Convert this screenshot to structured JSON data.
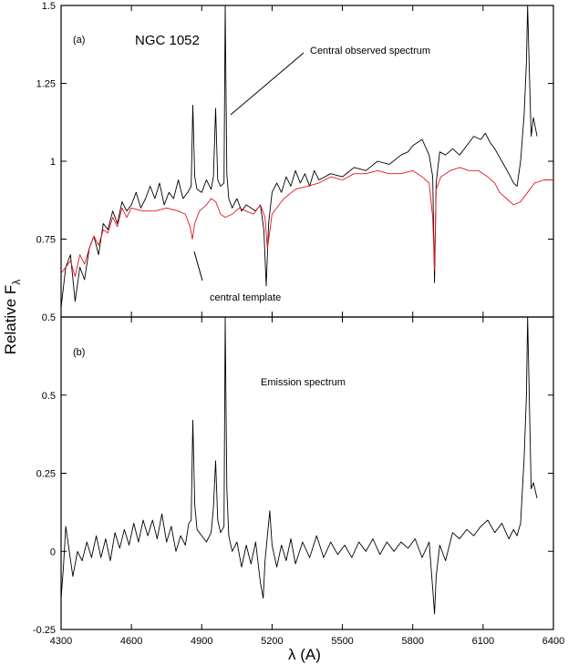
{
  "chart_data": [
    {
      "type": "line",
      "panel_tag": "(a)",
      "title": "NGC 1052",
      "xlabel": "λ (A)",
      "ylabel": "Relative F",
      "ylabel_subscript": "λ",
      "xlim": [
        4300,
        6400
      ],
      "ylim": [
        0.5,
        1.5
      ],
      "xticks": [
        "4300",
        "4600",
        "4900",
        "5200",
        "5500",
        "5800",
        "6100",
        "6400"
      ],
      "yticks": [
        "0.5",
        "0.75",
        "1",
        "1.25",
        "1.5"
      ],
      "annotations": [
        "Central observed spectrum",
        "central template"
      ],
      "series": [
        {
          "color": "#000000",
          "x": [
            4300,
            4320,
            4340,
            4360,
            4380,
            4400,
            4420,
            4440,
            4460,
            4480,
            4500,
            4520,
            4540,
            4560,
            4580,
            4600,
            4620,
            4640,
            4660,
            4680,
            4700,
            4720,
            4740,
            4760,
            4780,
            4800,
            4820,
            4840,
            4855,
            4862,
            4870,
            4880,
            4900,
            4920,
            4940,
            4950,
            4959,
            4968,
            4980,
            4995,
            5000,
            5007,
            5015,
            5030,
            5050,
            5070,
            5090,
            5110,
            5130,
            5150,
            5165,
            5175,
            5185,
            5200,
            5220,
            5240,
            5260,
            5280,
            5300,
            5320,
            5340,
            5360,
            5380,
            5400,
            5450,
            5500,
            5550,
            5600,
            5650,
            5700,
            5750,
            5780,
            5800,
            5840,
            5870,
            5885,
            5893,
            5900,
            5915,
            5940,
            5970,
            6000,
            6030,
            6060,
            6090,
            6110,
            6130,
            6150,
            6180,
            6210,
            6230,
            6245,
            6260,
            6275,
            6285,
            6290,
            6297,
            6305,
            6315,
            6330
          ],
          "y": [
            0.53,
            0.66,
            0.7,
            0.55,
            0.66,
            0.62,
            0.72,
            0.76,
            0.7,
            0.8,
            0.78,
            0.84,
            0.8,
            0.87,
            0.84,
            0.86,
            0.9,
            0.85,
            0.88,
            0.92,
            0.88,
            0.93,
            0.86,
            0.9,
            0.88,
            0.94,
            0.88,
            0.9,
            0.92,
            1.18,
            0.95,
            0.91,
            0.9,
            0.94,
            0.91,
            0.95,
            1.17,
            0.94,
            0.92,
            0.93,
            1.5,
            0.96,
            0.88,
            0.85,
            0.88,
            0.84,
            0.86,
            0.85,
            0.84,
            0.86,
            0.78,
            0.6,
            0.8,
            0.9,
            0.93,
            0.9,
            0.95,
            0.92,
            0.97,
            0.93,
            0.96,
            0.92,
            0.97,
            0.94,
            0.96,
            0.95,
            0.98,
            0.97,
            1,
            0.99,
            1.02,
            1.03,
            1.05,
            1.07,
            1.02,
            0.95,
            0.61,
            0.93,
            1.03,
            1.02,
            1.04,
            1.02,
            1.05,
            1.08,
            1.07,
            1.09,
            1.06,
            1.04,
            1.0,
            0.96,
            0.93,
            0.92,
            1.0,
            1.15,
            1.32,
            1.5,
            1.3,
            1.08,
            1.14,
            1.08
          ]
        },
        {
          "color": "#e0141e",
          "x": [
            4300,
            4320,
            4340,
            4360,
            4380,
            4400,
            4420,
            4440,
            4460,
            4480,
            4500,
            4520,
            4540,
            4560,
            4580,
            4600,
            4650,
            4700,
            4750,
            4800,
            4830,
            4850,
            4860,
            4870,
            4890,
            4920,
            4940,
            4960,
            4980,
            5000,
            5030,
            5060,
            5090,
            5120,
            5150,
            5170,
            5180,
            5200,
            5250,
            5300,
            5350,
            5400,
            5450,
            5500,
            5550,
            5600,
            5650,
            5700,
            5750,
            5800,
            5840,
            5870,
            5885,
            5893,
            5900,
            5920,
            5960,
            6000,
            6040,
            6080,
            6120,
            6150,
            6170,
            6200,
            6230,
            6260,
            6290,
            6320,
            6360,
            6400
          ],
          "y": [
            0.64,
            0.66,
            0.68,
            0.63,
            0.7,
            0.67,
            0.72,
            0.76,
            0.73,
            0.78,
            0.77,
            0.82,
            0.79,
            0.85,
            0.82,
            0.85,
            0.84,
            0.84,
            0.85,
            0.84,
            0.83,
            0.79,
            0.75,
            0.8,
            0.84,
            0.86,
            0.88,
            0.87,
            0.83,
            0.82,
            0.83,
            0.85,
            0.84,
            0.83,
            0.86,
            0.82,
            0.72,
            0.83,
            0.88,
            0.91,
            0.92,
            0.93,
            0.95,
            0.94,
            0.96,
            0.96,
            0.97,
            0.96,
            0.96,
            0.97,
            0.95,
            0.93,
            0.82,
            0.65,
            0.91,
            0.95,
            0.97,
            0.98,
            0.97,
            0.97,
            0.95,
            0.93,
            0.9,
            0.88,
            0.86,
            0.87,
            0.9,
            0.93,
            0.94,
            0.94
          ]
        }
      ]
    },
    {
      "type": "line",
      "panel_tag": "(b)",
      "xlim": [
        4300,
        6400
      ],
      "ylim": [
        -0.25,
        0.75
      ],
      "yticks": [
        "-0.25",
        "0",
        "0.25",
        "0.5"
      ],
      "annotations": [
        "Emission spectrum"
      ],
      "series": [
        {
          "color": "#000000",
          "x": [
            4300,
            4310,
            4320,
            4335,
            4350,
            4370,
            4390,
            4410,
            4430,
            4450,
            4470,
            4490,
            4510,
            4530,
            4550,
            4570,
            4590,
            4610,
            4630,
            4650,
            4670,
            4690,
            4710,
            4730,
            4750,
            4770,
            4790,
            4810,
            4830,
            4845,
            4855,
            4862,
            4870,
            4880,
            4900,
            4920,
            4940,
            4950,
            4959,
            4968,
            4980,
            4995,
            5000,
            5007,
            5015,
            5030,
            5050,
            5070,
            5090,
            5110,
            5130,
            5150,
            5162,
            5170,
            5180,
            5190,
            5200,
            5220,
            5240,
            5260,
            5280,
            5300,
            5330,
            5360,
            5390,
            5420,
            5450,
            5480,
            5510,
            5540,
            5570,
            5600,
            5630,
            5660,
            5690,
            5720,
            5750,
            5780,
            5810,
            5840,
            5870,
            5885,
            5893,
            5900,
            5915,
            5940,
            5970,
            6000,
            6030,
            6060,
            6090,
            6120,
            6150,
            6180,
            6210,
            6230,
            6245,
            6260,
            6275,
            6285,
            6290,
            6297,
            6305,
            6315,
            6330
          ],
          "y": [
            -0.15,
            -0.05,
            0.08,
            0.0,
            -0.08,
            0.0,
            -0.03,
            0.03,
            -0.02,
            0.05,
            -0.02,
            0.04,
            -0.03,
            0.06,
            0.01,
            0.07,
            0.02,
            0.09,
            0.03,
            0.1,
            0.05,
            0.1,
            0.04,
            0.12,
            0.03,
            0.08,
            0.0,
            0.05,
            0.02,
            0.09,
            0.1,
            0.42,
            0.15,
            0.07,
            0.05,
            0.03,
            0.06,
            0.14,
            0.29,
            0.1,
            0.06,
            0.08,
            0.75,
            0.2,
            0.05,
            0.0,
            0.03,
            -0.05,
            0.02,
            -0.04,
            0.03,
            -0.1,
            -0.15,
            -0.03,
            0.05,
            0.13,
            0.02,
            -0.05,
            0.02,
            -0.03,
            0.04,
            -0.04,
            0.03,
            -0.02,
            0.05,
            -0.02,
            0.03,
            -0.01,
            0.02,
            -0.02,
            0.03,
            0.0,
            0.04,
            -0.01,
            0.03,
            0.0,
            0.03,
            0.01,
            0.04,
            -0.02,
            0.03,
            -0.12,
            -0.2,
            -0.08,
            0.02,
            -0.03,
            0.06,
            0.04,
            0.07,
            0.05,
            0.08,
            0.1,
            0.06,
            0.09,
            0.04,
            0.07,
            0.05,
            0.09,
            0.3,
            0.5,
            0.75,
            0.5,
            0.2,
            0.22,
            0.17
          ]
        }
      ]
    }
  ]
}
